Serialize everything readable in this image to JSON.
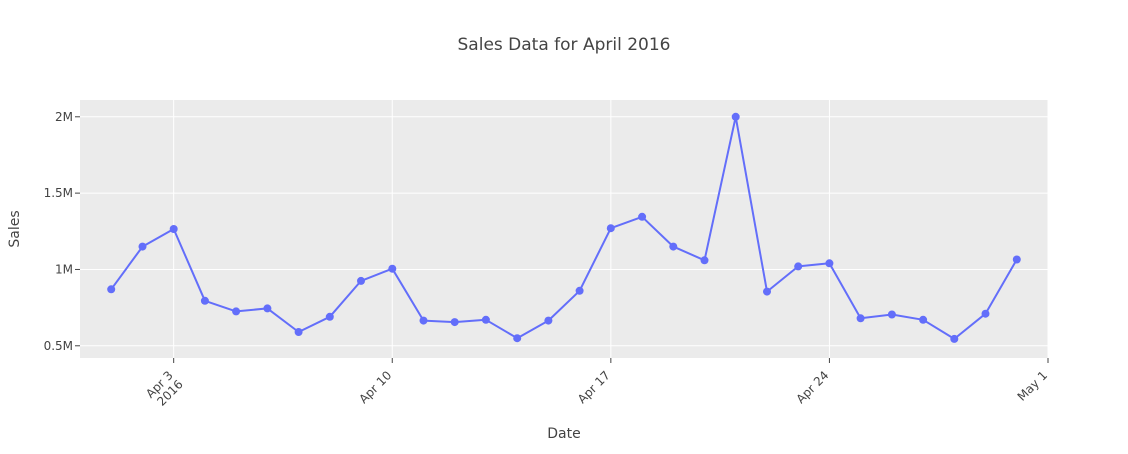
{
  "chart_data": {
    "type": "line",
    "title": "Sales Data for April 2016",
    "xlabel": "Date",
    "ylabel": "Sales",
    "x_axis_type": "date",
    "x_range": [
      "2016-03-31",
      "2016-05-01"
    ],
    "x_ticks": [
      {
        "date": "2016-04-03",
        "label": "Apr 3",
        "sublabel": "2016"
      },
      {
        "date": "2016-04-10",
        "label": "Apr 10",
        "sublabel": ""
      },
      {
        "date": "2016-04-17",
        "label": "Apr 17",
        "sublabel": ""
      },
      {
        "date": "2016-04-24",
        "label": "Apr 24",
        "sublabel": ""
      },
      {
        "date": "2016-05-01",
        "label": "May 1",
        "sublabel": ""
      }
    ],
    "ylim": [
      420000,
      2110000
    ],
    "y_ticks": [
      {
        "value": 500000,
        "label": "0.5M"
      },
      {
        "value": 1000000,
        "label": "1M"
      },
      {
        "value": 1500000,
        "label": "1.5M"
      },
      {
        "value": 2000000,
        "label": "2M"
      }
    ],
    "grid": true,
    "series": [
      {
        "color": "#636efa",
        "x": [
          "2016-04-01",
          "2016-04-02",
          "2016-04-03",
          "2016-04-04",
          "2016-04-05",
          "2016-04-06",
          "2016-04-07",
          "2016-04-08",
          "2016-04-09",
          "2016-04-10",
          "2016-04-11",
          "2016-04-12",
          "2016-04-13",
          "2016-04-14",
          "2016-04-15",
          "2016-04-16",
          "2016-04-17",
          "2016-04-18",
          "2016-04-19",
          "2016-04-20",
          "2016-04-21",
          "2016-04-22",
          "2016-04-23",
          "2016-04-24",
          "2016-04-25",
          "2016-04-26",
          "2016-04-27",
          "2016-04-28",
          "2016-04-29",
          "2016-04-30"
        ],
        "values": [
          870000,
          1150000,
          1265000,
          795000,
          725000,
          745000,
          590000,
          690000,
          925000,
          1005000,
          665000,
          655000,
          670000,
          550000,
          665000,
          860000,
          1270000,
          1345000,
          1150000,
          1060000,
          2000000,
          855000,
          1020000,
          1040000,
          680000,
          705000,
          670000,
          545000,
          710000,
          1065000
        ]
      }
    ]
  }
}
